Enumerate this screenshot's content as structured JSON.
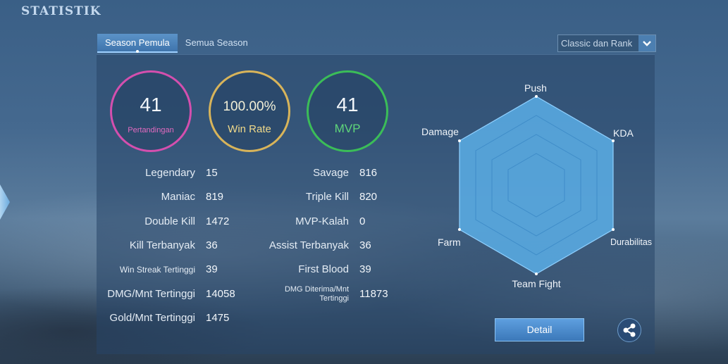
{
  "page_title": "STATISTIK",
  "tabs": [
    {
      "label": "Season Pemula",
      "active": true
    },
    {
      "label": "Semua Season",
      "active": false
    }
  ],
  "mode_dropdown": {
    "selected": "Classic dan Rank"
  },
  "summary": {
    "matches": {
      "value": "41",
      "label": "Pertandingan",
      "color": "#d44fae"
    },
    "win_rate": {
      "value": "100.00%",
      "label": "Win Rate",
      "color": "#d8b45a"
    },
    "mvp": {
      "value": "41",
      "label": "MVP",
      "color": "#3bbd58"
    }
  },
  "stats_left": [
    {
      "label": "Legendary",
      "value": "15"
    },
    {
      "label": "Maniac",
      "value": "819"
    },
    {
      "label": "Double Kill",
      "value": "1472"
    },
    {
      "label": "Kill Terbanyak",
      "value": "36"
    },
    {
      "label": "Win Streak Tertinggi",
      "value": "39"
    },
    {
      "label": "DMG/Mnt Tertinggi",
      "value": "14058"
    },
    {
      "label": "Gold/Mnt Tertinggi",
      "value": "1475"
    }
  ],
  "stats_right": [
    {
      "label": "Savage",
      "value": "816"
    },
    {
      "label": "Triple Kill",
      "value": "820"
    },
    {
      "label": "MVP-Kalah",
      "value": "0"
    },
    {
      "label": "Assist Terbanyak",
      "value": "36"
    },
    {
      "label": "First Blood",
      "value": "39"
    },
    {
      "label": "DMG Diterima/Mnt",
      "label2": "Tertinggi",
      "value": "11873"
    }
  ],
  "radar": {
    "axes": [
      "Push",
      "KDA",
      "Durabilitas",
      "Team Fight",
      "Farm",
      "Damage"
    ],
    "fill_color": "#5aaee6"
  },
  "detail_button": "Detail",
  "icons": {
    "share": "share-icon",
    "dropdown": "chevron-down-icon"
  }
}
